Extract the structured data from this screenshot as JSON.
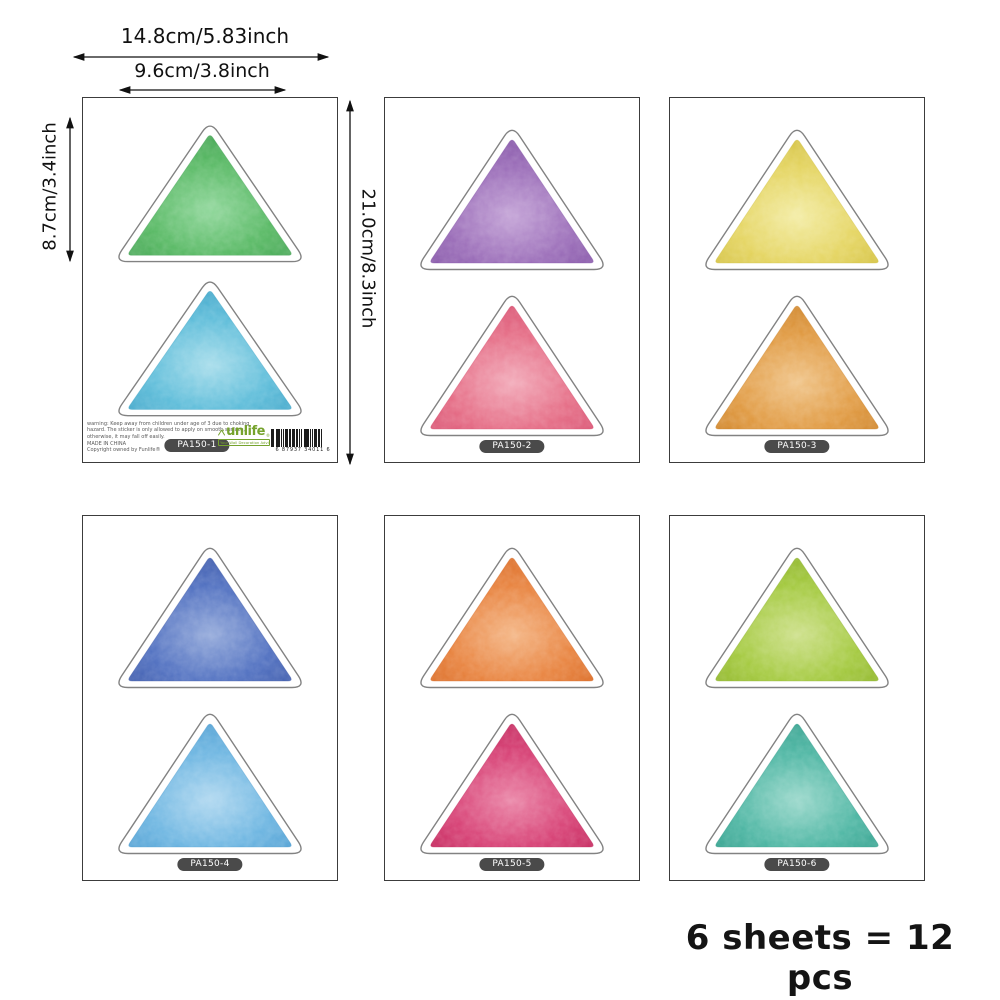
{
  "annotations": {
    "outer_width": "14.8cm/5.83inch",
    "triangle_width": "9.6cm/3.8inch",
    "triangle_height": "8.7cm/3.4inch",
    "sheet_height": "21.0cm/8.3inch",
    "pack_info": "6 sheets = 12 pcs"
  },
  "brand": {
    "logo_text": "unlife",
    "logo_reg": "®",
    "tagline": "Your Wall Decoration Advisor",
    "color": "#76a32d"
  },
  "barcode": {
    "digits": "6 87937 34011 6"
  },
  "footer_notes": {
    "lines": [
      "warning: Keep away from children under age of 3 due to choking",
      "hazard. The sticker is only allowed to apply on smooth surface,",
      "otherwise, it may fall off easily.",
      "MADE IN CHINA",
      "Copyright owned by Funlife®"
    ]
  },
  "sheet_code_style": {
    "bg": "#4a4a4a",
    "text": "#ffffff"
  },
  "sheets": [
    {
      "label": "PA150-1",
      "triangles": [
        {
          "name": "green",
          "light": "#90d79b",
          "base": "#56b862",
          "dark": "#3f9e4f"
        },
        {
          "name": "cyan-blue",
          "light": "#a7ddeb",
          "base": "#5cbcd9",
          "dark": "#3a9fc4"
        }
      ]
    },
    {
      "label": "PA150-2",
      "triangles": [
        {
          "name": "purple",
          "light": "#c3a2d6",
          "base": "#9a6cb8",
          "dark": "#7c4ba1"
        },
        {
          "name": "rose-pink",
          "light": "#f2a9b8",
          "base": "#e56c85",
          "dark": "#d4476a"
        }
      ]
    },
    {
      "label": "PA150-3",
      "triangles": [
        {
          "name": "yellow",
          "light": "#f3eca4",
          "base": "#e4d45f",
          "dark": "#cdba36"
        },
        {
          "name": "amber-orange",
          "light": "#f0c488",
          "base": "#e09940",
          "dark": "#c87c20"
        }
      ]
    },
    {
      "label": "PA150-4",
      "triangles": [
        {
          "name": "royal-blue",
          "light": "#93a9da",
          "base": "#4f6fc0",
          "dark": "#3a55a4"
        },
        {
          "name": "sky-blue",
          "light": "#b0d8f0",
          "base": "#6cb5e1",
          "dark": "#4697cd"
        }
      ]
    },
    {
      "label": "PA150-5",
      "triangles": [
        {
          "name": "orange",
          "light": "#f4b584",
          "base": "#e8823d",
          "dark": "#d5631d"
        },
        {
          "name": "magenta-pink",
          "light": "#ea84a6",
          "base": "#d63d72",
          "dark": "#bd2458"
        }
      ]
    },
    {
      "label": "PA150-6",
      "triangles": [
        {
          "name": "lime-green",
          "light": "#cde08a",
          "base": "#a3c93d",
          "dark": "#88ae23"
        },
        {
          "name": "teal",
          "light": "#9ad8cb",
          "base": "#4bb5a2",
          "dark": "#2f9a88"
        }
      ]
    }
  ]
}
